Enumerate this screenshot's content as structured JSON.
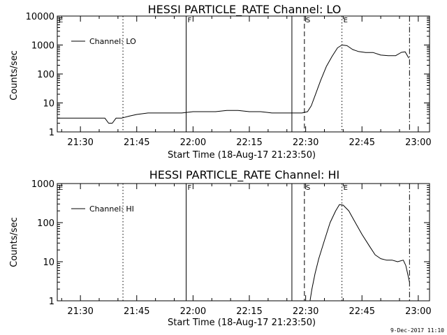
{
  "footer_stamp": "9-Dec-2017 11:10",
  "chart_data": [
    {
      "type": "line",
      "title": "HESSI PARTICLE_RATE Channel: LO",
      "xlabel": "Start Time (18-Aug-17 21:23:50)",
      "ylabel": "Counts/sec",
      "yscale": "log",
      "ylim": [
        1,
        10000
      ],
      "xlim": [
        "21:23:50",
        "23:03:00"
      ],
      "ytick_labels": [
        "1",
        "10",
        "100",
        "1000",
        "10000"
      ],
      "ytick_values": [
        1,
        10,
        100,
        1000,
        10000
      ],
      "xtick_labels": [
        "21:30",
        "21:45",
        "22:00",
        "22:15",
        "22:30",
        "22:45",
        "23:00"
      ],
      "xtick_values": [
        "21:30",
        "21:45",
        "22:00",
        "22:15",
        "22:30",
        "22:45",
        "23:00"
      ],
      "legend": {
        "position": "top-left",
        "entries": [
          "Channel: LO"
        ]
      },
      "grid": false,
      "markers": [
        {
          "label": "E",
          "time": "21:23:50",
          "style": "solid"
        },
        {
          "label": "",
          "time": "21:41:20",
          "style": "dotted"
        },
        {
          "label": "F",
          "time": "21:58:10",
          "style": "solid"
        },
        {
          "label": "",
          "time": "22:26:20",
          "style": "solid"
        },
        {
          "label": "S",
          "time": "22:29:40",
          "style": "dashed"
        },
        {
          "label": "E",
          "time": "22:39:40",
          "style": "dotted"
        },
        {
          "label": "",
          "time": "22:57:40",
          "style": "dashdot"
        }
      ],
      "series": [
        {
          "name": "Channel: LO",
          "x": [
            "21:23:50",
            "21:25:00",
            "21:27:00",
            "21:29:00",
            "21:31:00",
            "21:33:00",
            "21:35:00",
            "21:36:30",
            "21:37:30",
            "21:38:30",
            "21:39:30",
            "21:41:00",
            "21:43:00",
            "21:45:00",
            "21:48:00",
            "21:51:00",
            "21:54:00",
            "21:57:00",
            "22:00:00",
            "22:03:00",
            "22:06:00",
            "22:09:00",
            "22:12:00",
            "22:15:00",
            "22:18:00",
            "22:21:00",
            "22:24:00",
            "22:27:00",
            "22:29:00",
            "22:30:30",
            "22:31:30",
            "22:32:30",
            "22:34:00",
            "22:35:30",
            "22:37:00",
            "22:38:30",
            "22:39:40",
            "22:41:00",
            "22:42:30",
            "22:44:00",
            "22:46:00",
            "22:48:00",
            "22:50:00",
            "22:52:00",
            "22:54:00",
            "22:55:30",
            "22:56:30",
            "22:57:30"
          ],
          "values": [
            3,
            3,
            3,
            3,
            3,
            3,
            3,
            3,
            2,
            2,
            3,
            3,
            3.5,
            4,
            4.5,
            4.5,
            4.5,
            4.5,
            5,
            5,
            5,
            5.5,
            5.5,
            5,
            5,
            4.5,
            4.5,
            4.5,
            4.5,
            5,
            8,
            18,
            60,
            180,
            400,
            800,
            1000,
            950,
            700,
            600,
            550,
            550,
            450,
            430,
            430,
            560,
            580,
            350
          ]
        }
      ]
    },
    {
      "type": "line",
      "title": "HESSI PARTICLE_RATE Channel: HI",
      "xlabel": "Start Time (18-Aug-17 21:23:50)",
      "ylabel": "Counts/sec",
      "yscale": "log",
      "ylim": [
        1,
        1000
      ],
      "xlim": [
        "21:23:50",
        "23:03:00"
      ],
      "ytick_labels": [
        "1",
        "10",
        "100",
        "1000"
      ],
      "ytick_values": [
        1,
        10,
        100,
        1000
      ],
      "xtick_labels": [
        "21:30",
        "21:45",
        "22:00",
        "22:15",
        "22:30",
        "22:45",
        "23:00"
      ],
      "xtick_values": [
        "21:30",
        "21:45",
        "22:00",
        "22:15",
        "22:30",
        "22:45",
        "23:00"
      ],
      "legend": {
        "position": "top-left",
        "entries": [
          "Channel: HI"
        ]
      },
      "grid": false,
      "markers": [
        {
          "label": "E",
          "time": "21:23:50",
          "style": "solid"
        },
        {
          "label": "",
          "time": "21:41:20",
          "style": "dotted"
        },
        {
          "label": "F",
          "time": "21:58:10",
          "style": "solid"
        },
        {
          "label": "",
          "time": "22:26:20",
          "style": "solid"
        },
        {
          "label": "S",
          "time": "22:29:40",
          "style": "dashed"
        },
        {
          "label": "E",
          "time": "22:39:40",
          "style": "dotted"
        },
        {
          "label": "",
          "time": "22:57:40",
          "style": "dashdot"
        }
      ],
      "series": [
        {
          "name": "Channel: HI",
          "x": [
            "22:31:10",
            "22:31:40",
            "22:32:30",
            "22:33:30",
            "22:35:00",
            "22:36:30",
            "22:38:00",
            "22:39:00",
            "22:40:00",
            "22:41:30",
            "22:43:00",
            "22:45:00",
            "22:47:00",
            "22:48:30",
            "22:50:00",
            "22:51:30",
            "22:53:00",
            "22:54:30",
            "22:56:00",
            "22:56:40",
            "22:57:10",
            "22:57:40"
          ],
          "values": [
            1,
            2,
            5,
            12,
            35,
            100,
            200,
            290,
            280,
            200,
            110,
            50,
            25,
            15,
            12,
            11,
            11,
            10,
            11,
            8,
            5,
            3
          ]
        }
      ]
    }
  ]
}
